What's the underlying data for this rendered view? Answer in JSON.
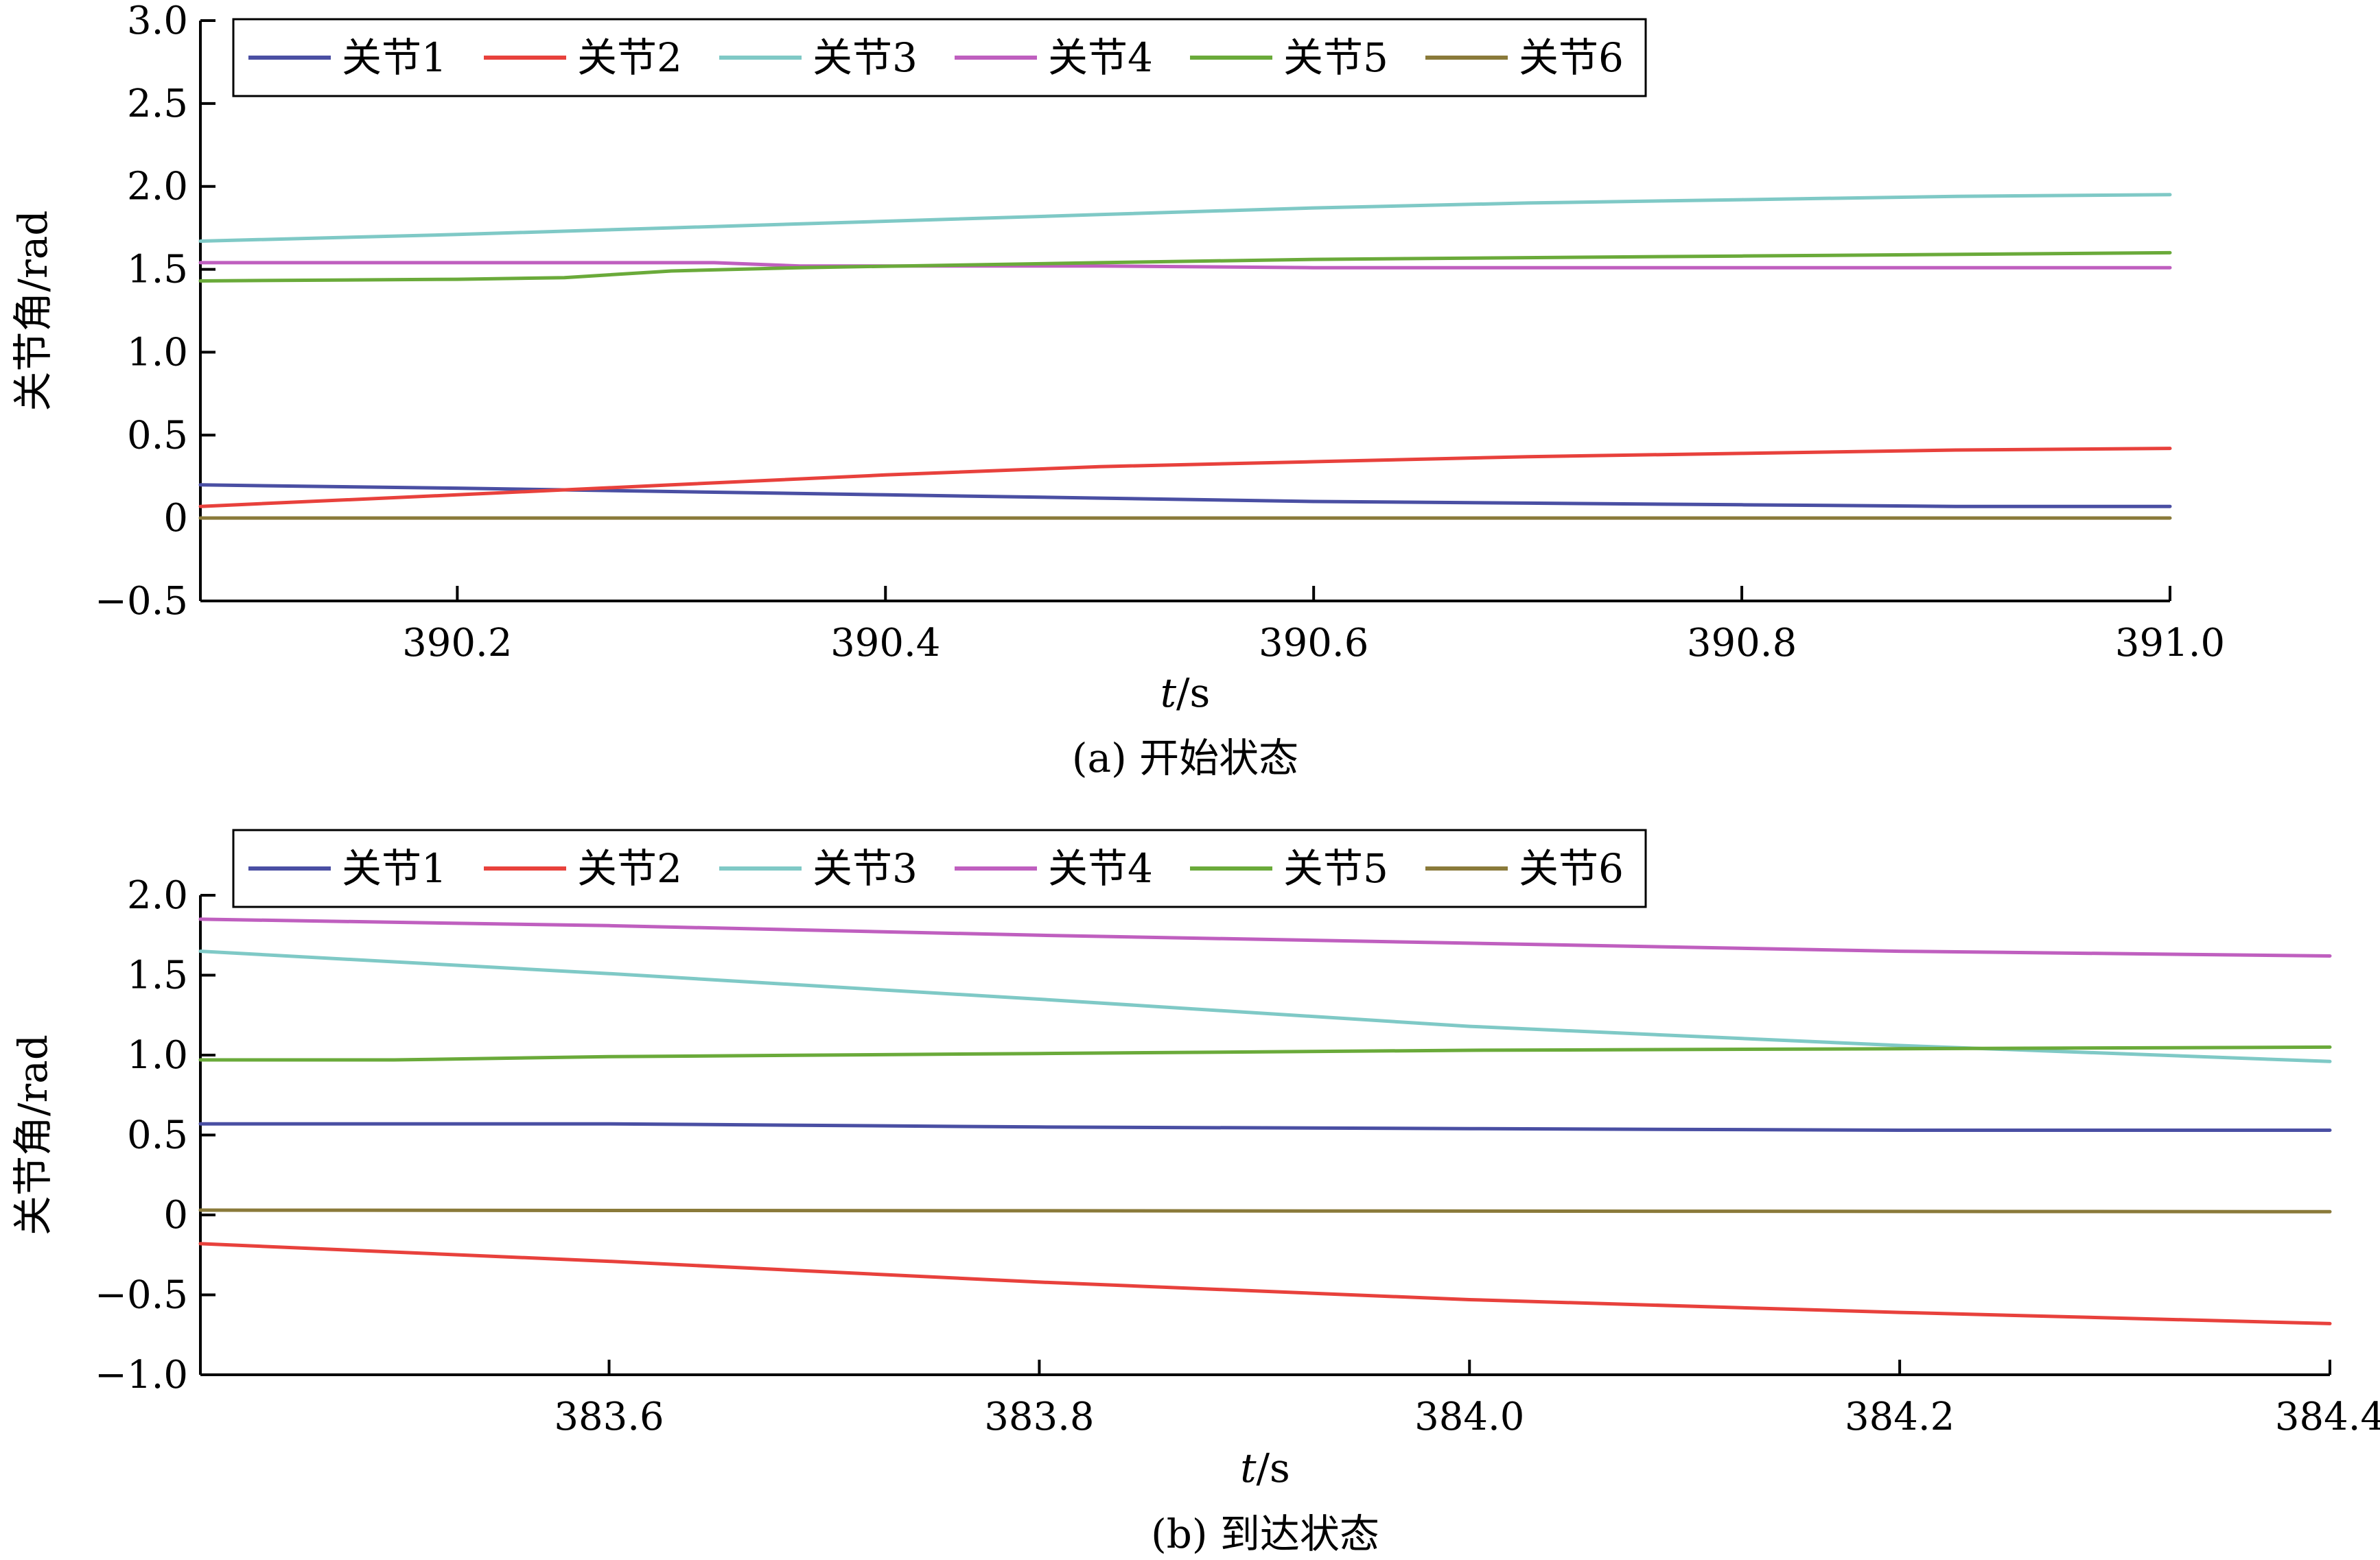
{
  "chart_data": [
    {
      "type": "line",
      "caption": "(a) 开始状态",
      "xlabel_italic": "t",
      "xlabel_unit": "/s",
      "ylabel": "关节角/rad",
      "xlim": [
        390.08,
        391.0
      ],
      "ylim": [
        -0.5,
        3.0
      ],
      "xticks": [
        390.2,
        390.4,
        390.6,
        390.8,
        391.0
      ],
      "xtick_labels": [
        "390.2",
        "390.4",
        "390.6",
        "390.8",
        "391.0"
      ],
      "yticks": [
        -0.5,
        0,
        0.5,
        1.0,
        1.5,
        2.0,
        2.5,
        3.0
      ],
      "ytick_labels": [
        "−0.5",
        "0",
        "0.5",
        "1.0",
        "1.5",
        "2.0",
        "2.5",
        "3.0"
      ],
      "grid": false,
      "legend_position": "top, single row",
      "series": [
        {
          "name": "关节1",
          "color": "#4a4fa3",
          "x": [
            390.08,
            390.2,
            390.3,
            390.4,
            390.5,
            390.6,
            390.7,
            390.8,
            390.9,
            391.0
          ],
          "y": [
            0.2,
            0.18,
            0.16,
            0.14,
            0.12,
            0.1,
            0.09,
            0.08,
            0.07,
            0.07
          ]
        },
        {
          "name": "关节2",
          "color": "#e8413c",
          "x": [
            390.08,
            390.2,
            390.3,
            390.4,
            390.5,
            390.6,
            390.7,
            390.8,
            390.9,
            391.0
          ],
          "y": [
            0.07,
            0.14,
            0.2,
            0.26,
            0.31,
            0.34,
            0.37,
            0.39,
            0.41,
            0.42
          ]
        },
        {
          "name": "关节3",
          "color": "#7fc9c6",
          "x": [
            390.08,
            390.2,
            390.3,
            390.4,
            390.5,
            390.6,
            390.7,
            390.8,
            390.9,
            391.0
          ],
          "y": [
            1.67,
            1.71,
            1.75,
            1.79,
            1.83,
            1.87,
            1.9,
            1.92,
            1.94,
            1.95
          ]
        },
        {
          "name": "关节4",
          "color": "#bf5fbf",
          "x": [
            390.08,
            390.2,
            390.32,
            390.36,
            390.5,
            390.6,
            390.8,
            391.0
          ],
          "y": [
            1.54,
            1.54,
            1.54,
            1.52,
            1.52,
            1.51,
            1.51,
            1.51
          ]
        },
        {
          "name": "关节5",
          "color": "#6aaa3a",
          "x": [
            390.08,
            390.2,
            390.25,
            390.3,
            390.36,
            390.5,
            390.6,
            390.8,
            391.0
          ],
          "y": [
            1.43,
            1.44,
            1.45,
            1.49,
            1.51,
            1.54,
            1.56,
            1.58,
            1.6
          ]
        },
        {
          "name": "关节6",
          "color": "#8a7a3a",
          "x": [
            390.08,
            391.0
          ],
          "y": [
            0.0,
            0.0
          ]
        }
      ]
    },
    {
      "type": "line",
      "caption": "(b) 到达状态",
      "xlabel_italic": "t",
      "xlabel_unit": "/s",
      "ylabel": "关节角/rad",
      "xlim": [
        383.41,
        384.4
      ],
      "ylim": [
        -1.0,
        2.0
      ],
      "xticks": [
        383.6,
        383.8,
        384.0,
        384.2,
        384.4
      ],
      "xtick_labels": [
        "383.6",
        "383.8",
        "384.0",
        "384.2",
        "384.4"
      ],
      "yticks": [
        -1.0,
        -0.5,
        0,
        0.5,
        1.0,
        1.5,
        2.0
      ],
      "ytick_labels": [
        "−1.0",
        "−0.5",
        "0",
        "0.5",
        "1.0",
        "1.5",
        "2.0"
      ],
      "grid": false,
      "legend_position": "top, single row",
      "series": [
        {
          "name": "关节1",
          "color": "#4a4fa3",
          "x": [
            383.41,
            383.6,
            383.8,
            384.0,
            384.2,
            384.4
          ],
          "y": [
            0.57,
            0.57,
            0.55,
            0.54,
            0.53,
            0.53
          ]
        },
        {
          "name": "关节2",
          "color": "#e8413c",
          "x": [
            383.41,
            383.6,
            383.8,
            384.0,
            384.2,
            384.4
          ],
          "y": [
            -0.18,
            -0.29,
            -0.42,
            -0.53,
            -0.61,
            -0.68
          ]
        },
        {
          "name": "关节3",
          "color": "#7fc9c6",
          "x": [
            383.41,
            383.6,
            383.8,
            384.0,
            384.2,
            384.4
          ],
          "y": [
            1.65,
            1.51,
            1.35,
            1.18,
            1.06,
            0.96
          ]
        },
        {
          "name": "关节4",
          "color": "#bf5fbf",
          "x": [
            383.41,
            383.6,
            383.8,
            384.0,
            384.2,
            384.4
          ],
          "y": [
            1.85,
            1.81,
            1.75,
            1.7,
            1.65,
            1.62
          ]
        },
        {
          "name": "关节5",
          "color": "#6aaa3a",
          "x": [
            383.41,
            383.5,
            383.6,
            383.8,
            384.0,
            384.2,
            384.4
          ],
          "y": [
            0.97,
            0.97,
            0.99,
            1.01,
            1.03,
            1.04,
            1.05
          ]
        },
        {
          "name": "关节6",
          "color": "#8a7a3a",
          "x": [
            383.41,
            384.4
          ],
          "y": [
            0.03,
            0.02
          ]
        }
      ]
    }
  ]
}
